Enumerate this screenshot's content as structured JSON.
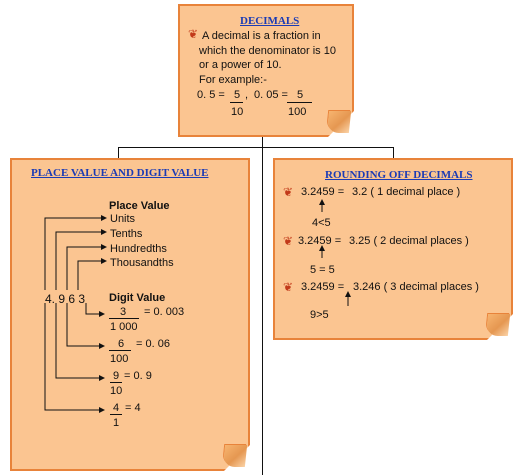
{
  "colors": {
    "note_fill": "#fbc591",
    "note_border": "#e8833a",
    "title": "#1b3bb5",
    "bullet": "#c23a1a"
  },
  "top": {
    "title": "DECIMALS",
    "bullet_icon": "decorative-bullet-icon",
    "line1": "A decimal is a fraction in",
    "line2": "which the denominator is 10",
    "line3": "or a power of 10.",
    "example_label": "For example:-",
    "ex1_left": "0. 5 =",
    "ex1_num": "5",
    "ex1_den": "10",
    "sep": ",",
    "ex2_left": "0. 05 =",
    "ex2_num": "5",
    "ex2_den": "100"
  },
  "left": {
    "title": "PLACE VALUE AND DIGIT VALUE",
    "place_value_heading": "Place Value",
    "places": [
      "Units",
      "Tenths",
      "Hundredths",
      "Thousandths"
    ],
    "number": "4. 9 6 3",
    "digit_value_heading": "Digit Value",
    "digit_values": [
      {
        "num": "3",
        "den": "1 000",
        "result": "= 0. 003"
      },
      {
        "num": "6",
        "den": "100",
        "result": "= 0. 06"
      },
      {
        "num": "9",
        "den": "10",
        "result": "= 0. 9"
      },
      {
        "num": "4",
        "den": "1",
        "result": "= 4"
      }
    ]
  },
  "right": {
    "title": "ROUNDING OFF DECIMALS",
    "rows": [
      {
        "left": "3.2459 =",
        "right": "3.2 ( 1 decimal place )"
      },
      {
        "left": "3.2459 =",
        "right": "3.25 ( 2 decimal places )"
      },
      {
        "left": "3.2459 =",
        "right": "3.246 ( 3 decimal places )"
      }
    ],
    "conditions": [
      "4<5",
      "5 = 5",
      "9>5"
    ]
  }
}
